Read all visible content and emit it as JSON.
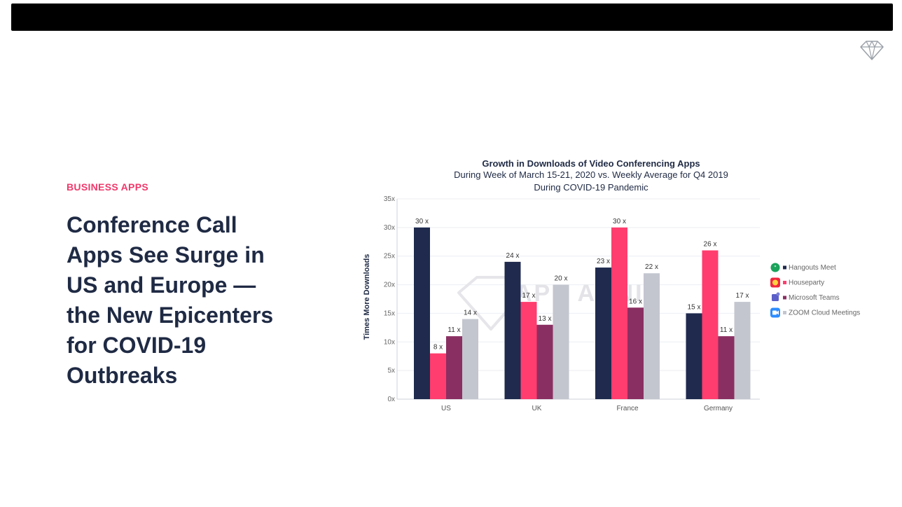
{
  "slide": {
    "category": "BUSINESS APPS",
    "headline": "Conference Call\nApps See Surge in\nUS and Europe —\nthe New Epicenters\nfor COVID-19\nOutbreaks",
    "category_color": "#f0386b",
    "headline_color": "#1f2a44",
    "logo_icon": "diamond-outline-icon"
  },
  "chart_data": {
    "type": "bar",
    "title": "Growth in Downloads of Video Conferencing Apps",
    "subtitle_line1": "During Week of March 15-21, 2020 vs. Weekly Average for Q4 2019",
    "subtitle_line2": "During COVID-19 Pandemic",
    "ylabel": "Times More Downloads",
    "xlabel": "",
    "ylim": [
      0,
      35
    ],
    "yticks": [
      "0x",
      "5x",
      "10x",
      "15x",
      "20x",
      "25x",
      "30x",
      "35x"
    ],
    "grid": true,
    "legend_position": "right",
    "watermark": "APP ANNIE",
    "categories": [
      "US",
      "UK",
      "France",
      "Germany"
    ],
    "series": [
      {
        "name": "Hangouts Meet",
        "color": "#1f2a4e",
        "icon": "hangouts-icon",
        "values": [
          30,
          24,
          23,
          15
        ],
        "labels": [
          "30 x",
          "24 x",
          "23 x",
          "15 x"
        ]
      },
      {
        "name": "Houseparty",
        "color": "#ff3d6e",
        "icon": "houseparty-icon",
        "values": [
          8,
          17,
          30,
          26
        ],
        "labels": [
          "8 x",
          "17 x",
          "30 x",
          "26 x"
        ]
      },
      {
        "name": "Microsoft Teams",
        "color": "#8a2f62",
        "icon": "teams-icon",
        "values": [
          11,
          13,
          16,
          11
        ],
        "labels": [
          "11 x",
          "13 x",
          "16 x",
          "11 x"
        ]
      },
      {
        "name": "ZOOM Cloud Meetings",
        "color": "#c3c6cf",
        "icon": "zoom-icon",
        "values": [
          14,
          20,
          22,
          17
        ],
        "labels": [
          "14 x",
          "20 x",
          "22 x",
          "17 x"
        ]
      }
    ]
  }
}
